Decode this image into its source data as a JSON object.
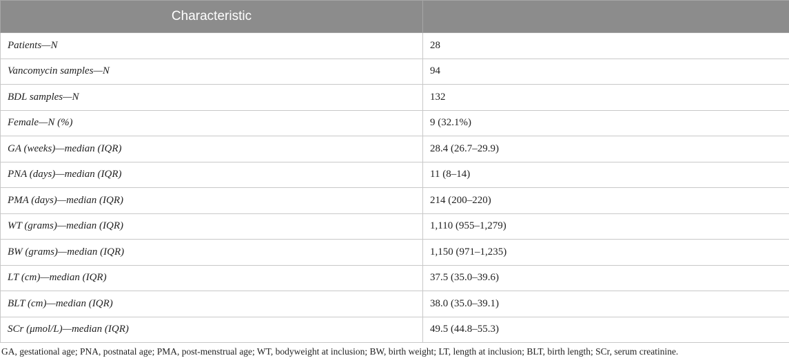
{
  "table": {
    "headers": [
      "Characteristic",
      ""
    ],
    "rows": [
      [
        "Patients—N",
        "28"
      ],
      [
        "Vancomycin samples—N",
        "94"
      ],
      [
        "BDL samples—N",
        "132"
      ],
      [
        "Female—N (%)",
        "9 (32.1%)"
      ],
      [
        "GA (weeks)—median (IQR)",
        "28.4 (26.7–29.9)"
      ],
      [
        "PNA (days)—median (IQR)",
        "11 (8–14)"
      ],
      [
        "PMA (days)—median (IQR)",
        "214 (200–220)"
      ],
      [
        "WT (grams)—median (IQR)",
        "1,110 (955–1,279)"
      ],
      [
        "BW (grams)—median (IQR)",
        "1,150 (971–1,235)"
      ],
      [
        "LT (cm)—median (IQR)",
        "37.5 (35.0–39.6)"
      ],
      [
        "BLT (cm)—median (IQR)",
        "38.0 (35.0–39.1)"
      ],
      [
        "SCr (μmol/L)—median (IQR)",
        "49.5 (44.8–55.3)"
      ]
    ]
  },
  "footnote": "GA, gestational age; PNA, postnatal age; PMA, post-menstrual age; WT, bodyweight at inclusion; BW, birth weight; LT, length at inclusion; BLT, birth length; SCr, serum creatinine.",
  "colors": {
    "header_bg": "#8c8c8c",
    "header_text": "#ffffff",
    "border": "#c8c8c8"
  }
}
